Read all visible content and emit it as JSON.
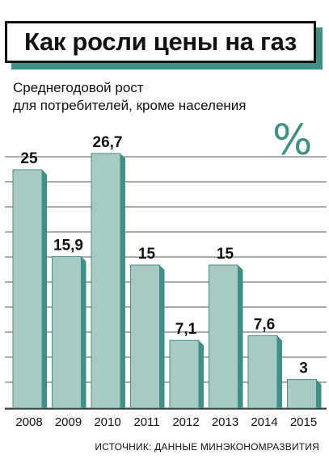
{
  "header": {
    "title": "Как росли цены на газ",
    "subtitle_line1": "Среднегодовой рост",
    "subtitle_line2": "для потребителей, кроме населения",
    "unit_symbol": "%"
  },
  "footer": {
    "source": "ИСТОЧНИК: ДАННЫЕ МИНЭКОНОМРАЗВИТИЯ"
  },
  "colors": {
    "bar_front": "#a9c9c4",
    "bar_side": "#3f8f86",
    "accent": "#3f8f86",
    "grid": "#5a5a5a"
  },
  "chart_data": {
    "type": "bar",
    "categories": [
      "2008",
      "2009",
      "2010",
      "2011",
      "2012",
      "2013",
      "2014",
      "2015"
    ],
    "values": [
      25,
      15.9,
      26.7,
      15,
      7.1,
      15,
      7.6,
      3
    ],
    "value_labels": [
      "25",
      "15,9",
      "26,7",
      "15",
      "7,1",
      "15",
      "7,6",
      "3"
    ],
    "title": "Как росли цены на газ",
    "xlabel": "",
    "ylabel": "",
    "grid": true
  }
}
